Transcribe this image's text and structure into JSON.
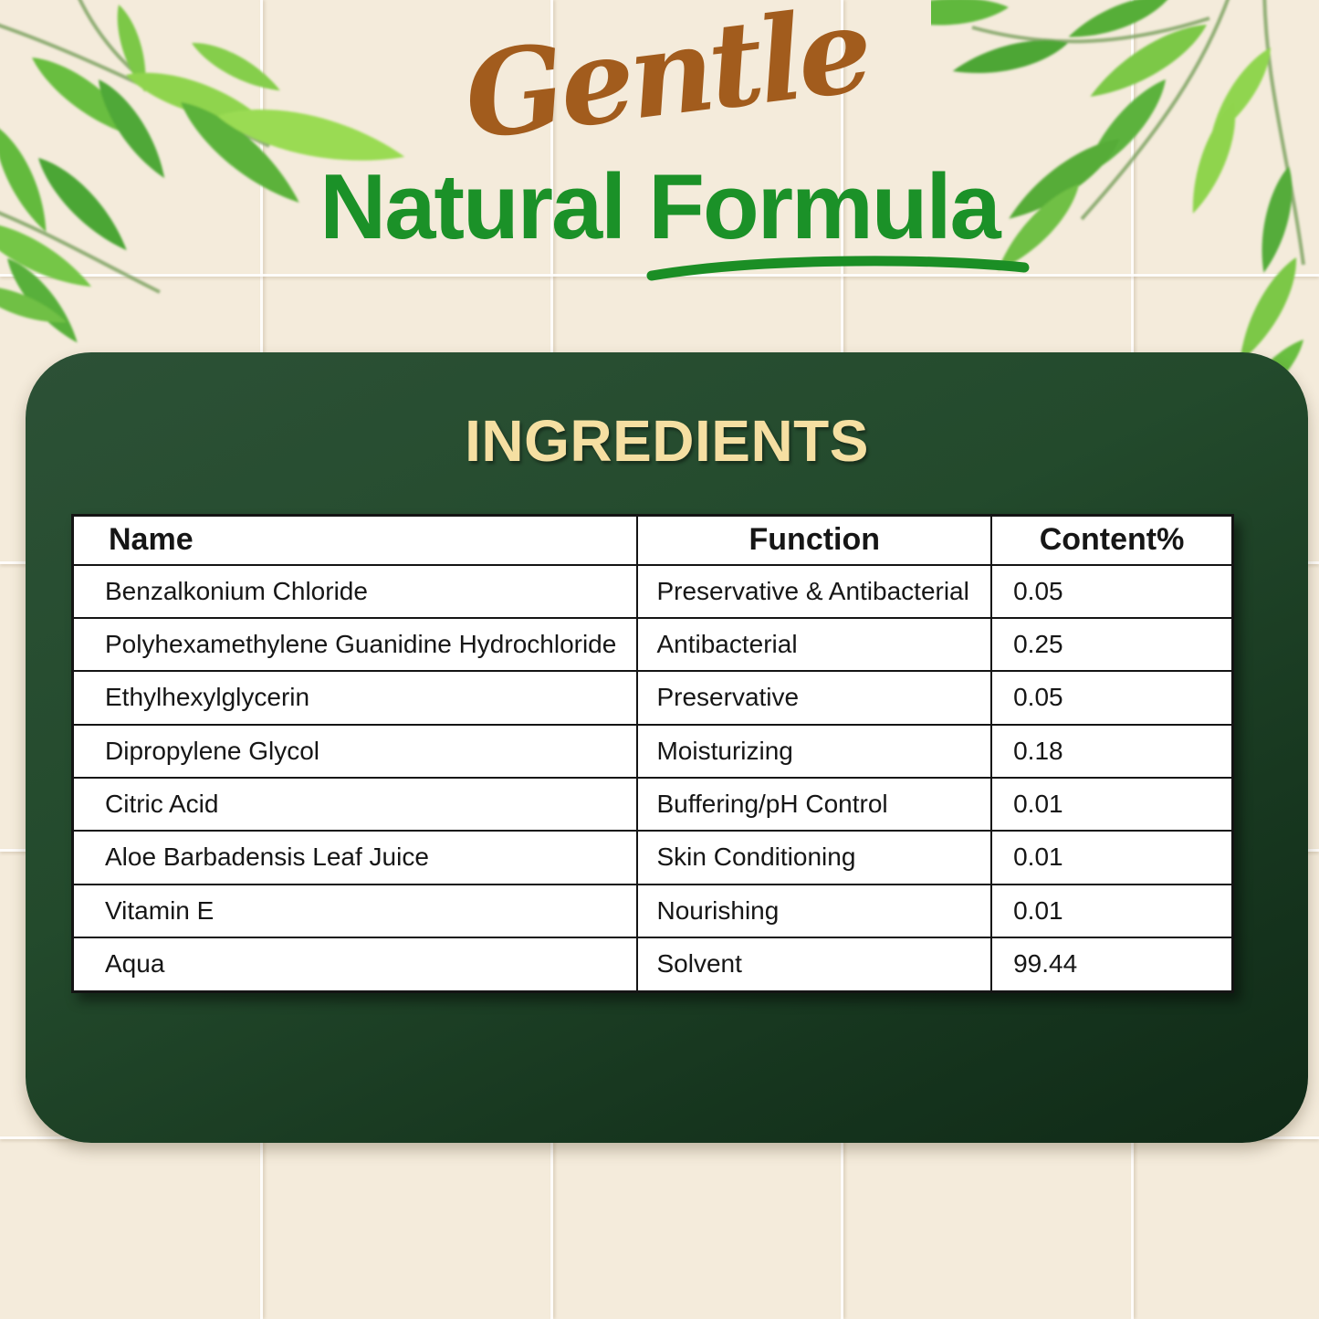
{
  "page": {
    "background_color": "#F4EBDB",
    "tile_line_color": "#FFFFFF"
  },
  "decorations": {
    "top_left_icon": "bamboo-leaves",
    "top_right_icon": "bamboo-leaves",
    "underline_icon": "green-swoosh-underline"
  },
  "header": {
    "script_word": "Gentle",
    "script_color": "#A25C1D",
    "title": "Natural Formula",
    "title_color": "#1B9128"
  },
  "panel": {
    "title": "INGREDIENTS",
    "title_color": "#F5DFA2",
    "background_color": "#234A2C"
  },
  "table": {
    "headers": [
      "Name",
      "Function",
      "Content%"
    ],
    "rows": [
      {
        "name": "Benzalkonium Chloride",
        "function": "Preservative & Antibacterial",
        "content": "0.05"
      },
      {
        "name": "Polyhexamethylene Guanidine Hydrochloride",
        "function": "Antibacterial",
        "content": "0.25"
      },
      {
        "name": "Ethylhexylglycerin",
        "function": "Preservative",
        "content": "0.05"
      },
      {
        "name": "Dipropylene Glycol",
        "function": "Moisturizing",
        "content": "0.18"
      },
      {
        "name": "Citric Acid",
        "function": "Buffering/pH Control",
        "content": "0.01"
      },
      {
        "name": "Aloe Barbadensis Leaf Juice",
        "function": "Skin Conditioning",
        "content": "0.01"
      },
      {
        "name": "Vitamin E",
        "function": "Nourishing",
        "content": "0.01"
      },
      {
        "name": "Aqua",
        "function": "Solvent",
        "content": "99.44"
      }
    ]
  }
}
